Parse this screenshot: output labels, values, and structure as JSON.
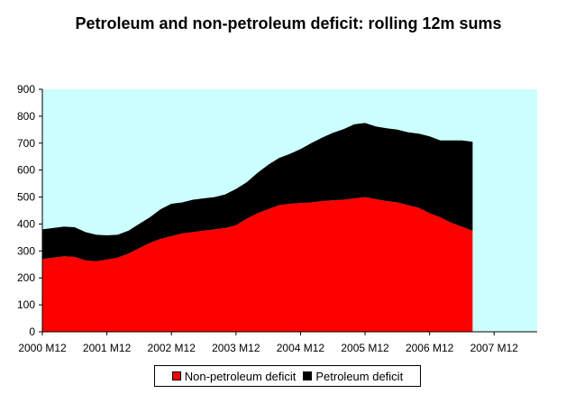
{
  "chart_data": {
    "type": "area",
    "stacked": true,
    "title": "Petroleum and non-petroleum deficit: rolling 12m sums",
    "xlabel": "",
    "ylabel": "",
    "ylim": [
      0,
      900
    ],
    "yticks": [
      0,
      100,
      200,
      300,
      400,
      500,
      600,
      700,
      800,
      900
    ],
    "x_tick_labels": [
      "2000 M12",
      "2001 M12",
      "2002 M12",
      "2003 M12",
      "2004 M12",
      "2005 M12",
      "2006 M12",
      "2007 M12"
    ],
    "x_start": "2000 M12",
    "x_end": "2007 M12",
    "grid": false,
    "legend_position": "bottom",
    "plot_background": "#ccffff",
    "series": [
      {
        "name": "Non-petroleum deficit",
        "color": "#ff0000",
        "points": [
          [
            "2000 M12",
            270
          ],
          [
            "2001 M02",
            275
          ],
          [
            "2001 M04",
            280
          ],
          [
            "2001 M06",
            278
          ],
          [
            "2001 M08",
            265
          ],
          [
            "2001 M10",
            262
          ],
          [
            "2001 M12",
            268
          ],
          [
            "2002 M02",
            275
          ],
          [
            "2002 M04",
            290
          ],
          [
            "2002 M06",
            310
          ],
          [
            "2002 M08",
            330
          ],
          [
            "2002 M10",
            345
          ],
          [
            "2002 M12",
            355
          ],
          [
            "2003 M02",
            365
          ],
          [
            "2003 M04",
            370
          ],
          [
            "2003 M06",
            375
          ],
          [
            "2003 M08",
            380
          ],
          [
            "2003 M10",
            385
          ],
          [
            "2003 M12",
            395
          ],
          [
            "2004 M02",
            420
          ],
          [
            "2004 M04",
            440
          ],
          [
            "2004 M06",
            455
          ],
          [
            "2004 M08",
            470
          ],
          [
            "2004 M10",
            475
          ],
          [
            "2004 M12",
            478
          ],
          [
            "2005 M02",
            480
          ],
          [
            "2005 M04",
            485
          ],
          [
            "2005 M06",
            488
          ],
          [
            "2005 M08",
            490
          ],
          [
            "2005 M10",
            495
          ],
          [
            "2005 M12",
            500
          ],
          [
            "2006 M02",
            492
          ],
          [
            "2006 M04",
            485
          ],
          [
            "2006 M06",
            480
          ],
          [
            "2006 M08",
            470
          ],
          [
            "2006 M10",
            460
          ],
          [
            "2006 M12",
            440
          ],
          [
            "2007 M02",
            425
          ],
          [
            "2007 M04",
            405
          ],
          [
            "2007 M06",
            390
          ],
          [
            "2007 M08",
            375
          ]
        ]
      },
      {
        "name": "Petroleum deficit",
        "color": "#000000",
        "points": [
          [
            "2000 M12",
            110
          ],
          [
            "2001 M02",
            110
          ],
          [
            "2001 M04",
            110
          ],
          [
            "2001 M06",
            110
          ],
          [
            "2001 M08",
            105
          ],
          [
            "2001 M10",
            98
          ],
          [
            "2001 M12",
            90
          ],
          [
            "2002 M02",
            85
          ],
          [
            "2002 M04",
            85
          ],
          [
            "2002 M06",
            90
          ],
          [
            "2002 M08",
            95
          ],
          [
            "2002 M10",
            110
          ],
          [
            "2002 M12",
            120
          ],
          [
            "2003 M02",
            115
          ],
          [
            "2003 M04",
            120
          ],
          [
            "2003 M06",
            120
          ],
          [
            "2003 M08",
            120
          ],
          [
            "2003 M10",
            125
          ],
          [
            "2003 M12",
            135
          ],
          [
            "2004 M02",
            135
          ],
          [
            "2004 M04",
            150
          ],
          [
            "2004 M06",
            165
          ],
          [
            "2004 M08",
            175
          ],
          [
            "2004 M10",
            185
          ],
          [
            "2004 M12",
            200
          ],
          [
            "2005 M02",
            220
          ],
          [
            "2005 M04",
            235
          ],
          [
            "2005 M06",
            250
          ],
          [
            "2005 M08",
            262
          ],
          [
            "2005 M10",
            275
          ],
          [
            "2005 M12",
            275
          ],
          [
            "2006 M02",
            270
          ],
          [
            "2006 M04",
            270
          ],
          [
            "2006 M06",
            270
          ],
          [
            "2006 M08",
            270
          ],
          [
            "2006 M10",
            275
          ],
          [
            "2006 M12",
            285
          ],
          [
            "2007 M02",
            285
          ],
          [
            "2007 M04",
            305
          ],
          [
            "2007 M06",
            320
          ],
          [
            "2007 M08",
            330
          ]
        ]
      }
    ]
  }
}
